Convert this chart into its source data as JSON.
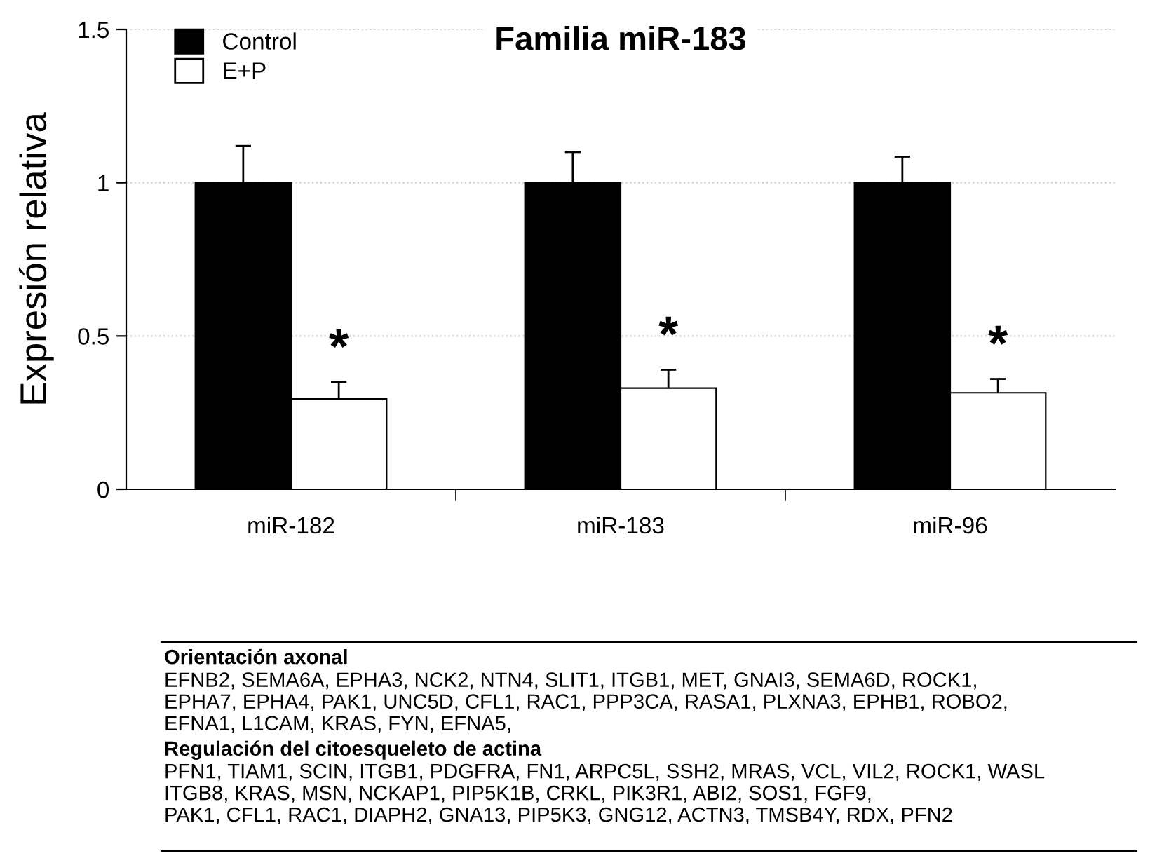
{
  "chart_data": {
    "type": "bar",
    "title": "Familia miR-183",
    "ylabel": "Expresión relativa",
    "categories": [
      "miR-182",
      "miR-183",
      "miR-96"
    ],
    "series": [
      {
        "name": "Control",
        "color": "#000000",
        "values": [
          1,
          1,
          1
        ],
        "errors": [
          0.12,
          0.1,
          0.085
        ]
      },
      {
        "name": "E+P",
        "color": "#ffffff",
        "values": [
          0.295,
          0.33,
          0.315
        ],
        "errors": [
          0.055,
          0.06,
          0.045
        ]
      }
    ],
    "ylim": [
      0,
      1.5
    ],
    "yticks": [
      0,
      0.5,
      1,
      1.5
    ],
    "grid": "y",
    "legend": "top left",
    "annotations": [
      {
        "text": "*",
        "x": "miR-182",
        "y": 0.35
      },
      {
        "text": "*",
        "x": "miR-183",
        "y": 0.39
      },
      {
        "text": "*",
        "x": "miR-96",
        "y": 0.36
      },
      "Orientación axonal",
      "EFNB2, SEMA6A, EPHA3, NCK2, NTN4, SLIT1, ITGB1, MET, GNAI3, SEMA6D, ROCK1,\nEPHA7, EPHA4, PAK1, UNC5D, CFL1, RAC1, PPP3CA, RASA1, PLXNA3, EPHB1, ROBO2,\nEFNA1, L1CAM, KRAS, FYN, EFNA5,",
      "Regulación del citoesqueleto de actina",
      "PFN1, TIAM1, SCIN, ITGB1, PDGFRA, FN1, ARPC5L, SSH2, MRAS, VCL, VIL2, ROCK1, WASL\nITGB8, KRAS, MSN, NCKAP1, PIP5K1B, CRKL, PIK3R1, ABI2, SOS1, FGF9,\nPAK1, CFL1, RAC1, DIAPH2, GNA13, PIP5K3, GNG12, ACTN3, TMSB4Y, RDX, PFN2"
    ]
  }
}
